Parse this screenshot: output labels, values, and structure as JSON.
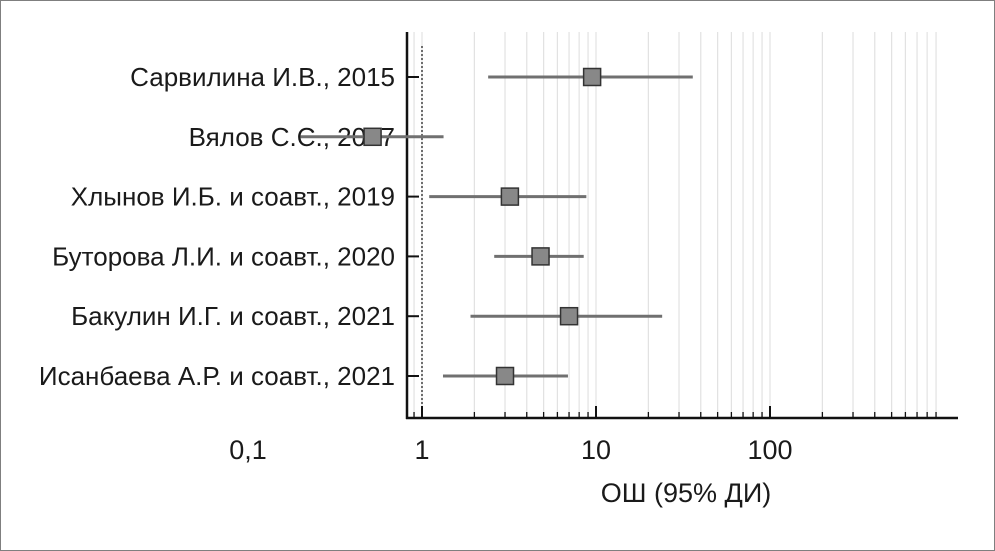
{
  "chart_data": {
    "type": "forest",
    "xlabel": "ОШ (95% ДИ)",
    "x_scale": "log",
    "xlim": [
      0.08,
      130
    ],
    "x_ticks": [
      0.1,
      1,
      10,
      100
    ],
    "x_tick_labels": [
      "0,1",
      "1",
      "10",
      "100"
    ],
    "reference_line": 1,
    "grid": "vertical minor",
    "studies": [
      {
        "label": "Сарвилина И.В., 2015",
        "or": 9.5,
        "ci_low": 2.4,
        "ci_high": 36
      },
      {
        "label": "Вялов С.С., 2017",
        "or": 0.52,
        "ci_low": 0.2,
        "ci_high": 1.33
      },
      {
        "label": "Хлынов И.Б. и соавт., 2019",
        "or": 3.2,
        "ci_low": 1.1,
        "ci_high": 8.8
      },
      {
        "label": "Буторова Л.И. и соавт., 2020",
        "or": 4.8,
        "ci_low": 2.6,
        "ci_high": 8.5
      },
      {
        "label": "Бакулин И.Г. и соавт., 2021",
        "or": 7.0,
        "ci_low": 1.9,
        "ci_high": 24
      },
      {
        "label": "Исанбаева А.Р. и соавт., 2021",
        "or": 3.0,
        "ci_low": 1.32,
        "ci_high": 6.9
      }
    ],
    "colors": {
      "marker_fill": "#888888",
      "marker_stroke": "#333333",
      "ci_line": "#707070",
      "grid": "#e2e2e2",
      "axis": "#111111"
    }
  }
}
